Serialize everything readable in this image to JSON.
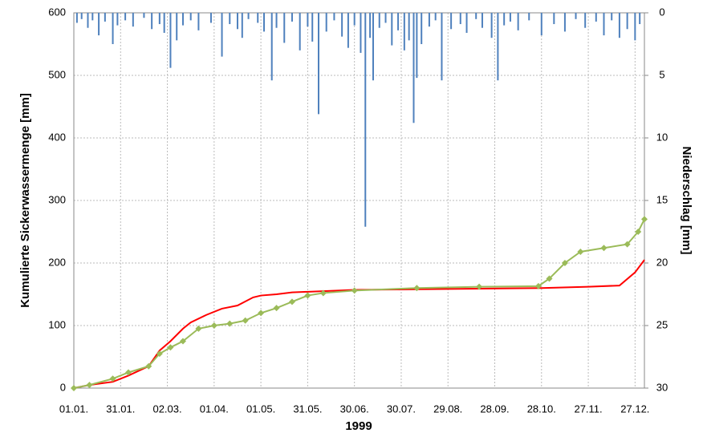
{
  "chart_data": {
    "type": "line",
    "x_label": "1999",
    "y_label": "Kumulierte  Sickerwassermenge [mm]",
    "y2_label": "Niederschlag [mm]",
    "xlim": [
      0,
      366
    ],
    "xticks": [
      {
        "value": 0,
        "label": "01.01."
      },
      {
        "value": 30,
        "label": "31.01."
      },
      {
        "value": 60,
        "label": "02.03."
      },
      {
        "value": 90,
        "label": "01.04."
      },
      {
        "value": 120,
        "label": "01.05."
      },
      {
        "value": 150,
        "label": "31.05."
      },
      {
        "value": 180,
        "label": "30.06."
      },
      {
        "value": 210,
        "label": "30.07."
      },
      {
        "value": 240,
        "label": "29.08."
      },
      {
        "value": 270,
        "label": "28.09."
      },
      {
        "value": 300,
        "label": "28.10."
      },
      {
        "value": 330,
        "label": "27.11."
      },
      {
        "value": 360,
        "label": "27.12."
      }
    ],
    "ylim": [
      0,
      600
    ],
    "yticks": [
      0,
      100,
      200,
      300,
      400,
      500,
      600
    ],
    "y2lim": [
      30,
      0
    ],
    "y2ticks": [
      0,
      5,
      10,
      15,
      20,
      25,
      30
    ],
    "grid": true,
    "series": [
      {
        "type": "bar",
        "axis": "y2",
        "color": "#4f81bd",
        "x": [
          2,
          5,
          9,
          12,
          16,
          20,
          25,
          28,
          33,
          38,
          45,
          50,
          55,
          58,
          62,
          66,
          70,
          75,
          80,
          88,
          95,
          100,
          105,
          108,
          112,
          118,
          122,
          127,
          130,
          135,
          140,
          145,
          150,
          153,
          157,
          162,
          167,
          172,
          176,
          180,
          184,
          187,
          190,
          192,
          196,
          200,
          204,
          208,
          212,
          215,
          218,
          220,
          223,
          228,
          232,
          236,
          242,
          248,
          252,
          258,
          262,
          268,
          272,
          276,
          280,
          285,
          292,
          300,
          308,
          315,
          322,
          328,
          335,
          340,
          345,
          350,
          355,
          360,
          363
        ],
        "values": [
          0.8,
          0.5,
          1.2,
          0.6,
          1.8,
          0.7,
          2.5,
          1.0,
          0.6,
          1.1,
          0.4,
          1.3,
          0.9,
          1.6,
          4.4,
          2.2,
          1.0,
          0.6,
          1.4,
          0.8,
          3.5,
          0.9,
          1.3,
          2.0,
          0.5,
          0.8,
          1.5,
          5.4,
          1.2,
          2.4,
          0.7,
          3.0,
          1.1,
          2.3,
          8.1,
          1.5,
          0.6,
          1.9,
          2.8,
          1.0,
          3.2,
          17.1,
          2.0,
          5.4,
          1.2,
          0.8,
          2.6,
          1.4,
          3.0,
          2.2,
          8.8,
          5.2,
          2.5,
          1.1,
          0.6,
          5.4,
          1.3,
          0.9,
          1.6,
          0.5,
          1.2,
          2.0,
          5.4,
          1.0,
          0.7,
          1.4,
          0.6,
          1.8,
          0.9,
          1.5,
          0.5,
          1.2,
          0.7,
          1.8,
          0.6,
          2.0,
          1.3,
          2.2,
          0.9
        ]
      },
      {
        "type": "line",
        "color": "#ff0000",
        "x": [
          0,
          10,
          25,
          35,
          48,
          55,
          62,
          70,
          75,
          85,
          95,
          105,
          115,
          120,
          130,
          140,
          160,
          180,
          220,
          260,
          300,
          330,
          350,
          360,
          366
        ],
        "values": [
          0,
          5,
          10,
          20,
          35,
          60,
          75,
          95,
          105,
          117,
          127,
          132,
          145,
          148,
          150,
          153,
          155,
          157,
          158,
          159,
          160,
          162,
          164,
          185,
          205
        ]
      },
      {
        "type": "line",
        "color": "#9bbb59",
        "markers": true,
        "x": [
          0,
          10,
          25,
          35,
          48,
          55,
          62,
          70,
          80,
          90,
          100,
          110,
          120,
          130,
          140,
          150,
          160,
          180,
          220,
          260,
          298,
          305,
          315,
          325,
          340,
          355,
          362,
          366
        ],
        "values": [
          0,
          5,
          15,
          25,
          35,
          55,
          65,
          75,
          95,
          100,
          103,
          108,
          120,
          128,
          138,
          148,
          152,
          156,
          160,
          162,
          163,
          175,
          200,
          218,
          224,
          230,
          250,
          270
        ]
      }
    ]
  }
}
